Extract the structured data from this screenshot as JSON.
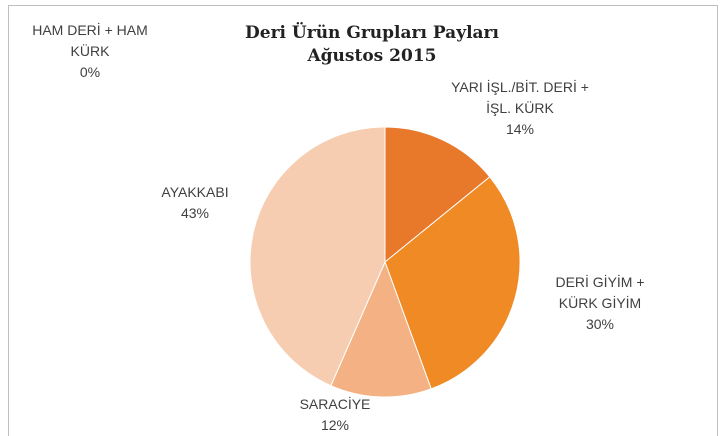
{
  "chart_data": {
    "type": "pie",
    "title": "Deri Ürün Grupları Payları Ağustos 2015",
    "categories": [
      "HAM DERİ + HAM KÜRK",
      "YARI İŞL./BİT. DERİ + İŞL. KÜRK",
      "DERİ GİYİM + KÜRK GİYİM",
      "SARACİYE",
      "AYAKKABI"
    ],
    "values": [
      0,
      14,
      30,
      12,
      43
    ],
    "value_labels": [
      "0%",
      "14%",
      "30%",
      "12%",
      "43%"
    ],
    "colors": [
      "#c0504d",
      "#e8782a",
      "#f08a24",
      "#f4b183",
      "#f6cdb0"
    ]
  }
}
